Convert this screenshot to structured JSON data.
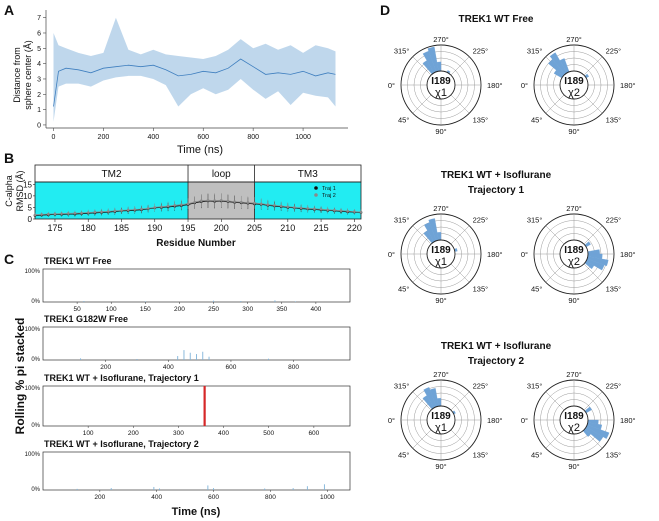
{
  "chart_data": [
    {
      "panel": "A",
      "type": "area",
      "xlabel": "Time (ns)",
      "ylabel_line1": "Distance from",
      "ylabel_line2": "sphere center (Å)",
      "xlim": [
        -30,
        1180
      ],
      "ylim": [
        -0.2,
        7.5
      ],
      "xticks": [
        0,
        200,
        400,
        600,
        800,
        1000
      ],
      "yticks": [
        0,
        1,
        2,
        3,
        4,
        5,
        6,
        7
      ],
      "x": [
        0,
        20,
        50,
        100,
        150,
        200,
        250,
        300,
        350,
        400,
        450,
        500,
        550,
        600,
        650,
        700,
        750,
        800,
        850,
        900,
        950,
        1000,
        1050,
        1100,
        1130
      ],
      "mean": [
        1.2,
        3.5,
        3.7,
        3.6,
        3.4,
        3.7,
        3.8,
        3.9,
        3.8,
        3.9,
        3.6,
        3.2,
        3.3,
        3.5,
        3.4,
        3.7,
        4.3,
        3.8,
        3.3,
        3.4,
        3.3,
        3.5,
        3.2,
        3.4,
        3.3
      ],
      "low": [
        0.2,
        2.5,
        2.7,
        2.7,
        2.5,
        2.9,
        3.1,
        3.2,
        3.2,
        3.0,
        2.6,
        1.2,
        2.0,
        2.4,
        2.0,
        2.3,
        3.0,
        2.3,
        1.7,
        2.2,
        1.3,
        2.1,
        1.9,
        1.8,
        1.2
      ],
      "high": [
        6.0,
        5.2,
        5.0,
        4.7,
        4.5,
        4.7,
        7.0,
        4.9,
        4.6,
        4.9,
        4.6,
        4.5,
        4.4,
        4.3,
        4.5,
        4.9,
        5.6,
        5.0,
        5.3,
        4.9,
        5.2,
        4.7,
        5.2,
        5.0,
        4.8
      ]
    },
    {
      "panel": "B",
      "type": "line",
      "xlabel": "Residue Number",
      "ylabel_line1": "C-alpha",
      "ylabel_line2": "RMSD (Å)",
      "xlim": [
        172,
        221
      ],
      "ylim": [
        0,
        16
      ],
      "xticks": [
        175,
        180,
        185,
        190,
        195,
        200,
        205,
        210,
        215,
        220
      ],
      "yticks": [
        0,
        5,
        10,
        15
      ],
      "regions": [
        {
          "label": "TM2",
          "from": 172,
          "to": 195,
          "color": "#22ecf2"
        },
        {
          "label": "loop",
          "from": 195,
          "to": 205,
          "color": "#bfbfbf"
        },
        {
          "label": "TM3",
          "from": 205,
          "to": 221,
          "color": "#22ecf2"
        }
      ],
      "series": [
        {
          "name": "Traj 1",
          "color": "#111111",
          "x": [
            172,
            173,
            174,
            175,
            176,
            177,
            178,
            179,
            180,
            181,
            182,
            183,
            184,
            185,
            186,
            187,
            188,
            189,
            190,
            191,
            192,
            193,
            194,
            195,
            196,
            197,
            198,
            199,
            200,
            201,
            202,
            203,
            204,
            205,
            206,
            207,
            208,
            209,
            210,
            211,
            212,
            213,
            214,
            215,
            216,
            217,
            218,
            219,
            220,
            221
          ],
          "y": [
            1.5,
            1.7,
            1.8,
            2.0,
            2.0,
            2.1,
            2.1,
            2.3,
            2.5,
            2.6,
            2.8,
            3.0,
            3.2,
            3.5,
            3.6,
            3.8,
            4.0,
            4.4,
            4.8,
            5.0,
            5.2,
            5.5,
            5.8,
            6.2,
            7.0,
            7.5,
            7.8,
            7.6,
            7.8,
            7.5,
            7.2,
            7.0,
            6.8,
            6.5,
            6.3,
            5.9,
            5.6,
            5.3,
            5.0,
            4.8,
            4.5,
            4.3,
            4.1,
            3.9,
            3.7,
            3.5,
            3.3,
            3.1,
            3.0,
            2.8
          ],
          "err": [
            0.8,
            0.8,
            0.9,
            0.9,
            0.9,
            1.0,
            1.0,
            1.0,
            1.1,
            1.1,
            1.2,
            1.2,
            1.3,
            1.3,
            1.4,
            1.4,
            1.5,
            1.5,
            1.6,
            1.7,
            1.8,
            1.9,
            2.0,
            2.2,
            2.5,
            2.8,
            3.0,
            3.0,
            3.0,
            2.9,
            2.8,
            2.6,
            2.5,
            2.4,
            2.2,
            2.0,
            1.9,
            1.8,
            1.7,
            1.6,
            1.5,
            1.4,
            1.3,
            1.3,
            1.2,
            1.2,
            1.1,
            1.1,
            1.0,
            1.0
          ]
        },
        {
          "name": "Traj 2",
          "color": "#8a8a8a",
          "x": [
            172,
            173,
            174,
            175,
            176,
            177,
            178,
            179,
            180,
            181,
            182,
            183,
            184,
            185,
            186,
            187,
            188,
            189,
            190,
            191,
            192,
            193,
            194,
            195,
            196,
            197,
            198,
            199,
            200,
            201,
            202,
            203,
            204,
            205,
            206,
            207,
            208,
            209,
            210,
            211,
            212,
            213,
            214,
            215,
            216,
            217,
            218,
            219,
            220,
            221
          ],
          "y": [
            1.8,
            2.0,
            2.1,
            2.2,
            2.3,
            2.4,
            2.5,
            2.6,
            2.8,
            3.0,
            3.1,
            3.3,
            3.5,
            3.7,
            3.9,
            4.1,
            4.3,
            4.6,
            5.0,
            5.3,
            5.6,
            5.9,
            6.2,
            6.6,
            7.3,
            7.9,
            8.1,
            8.0,
            8.1,
            7.8,
            7.5,
            7.3,
            7.1,
            6.9,
            6.6,
            6.2,
            5.9,
            5.6,
            5.3,
            5.0,
            4.8,
            4.6,
            4.4,
            4.2,
            4.0,
            3.8,
            3.6,
            3.4,
            3.2,
            3.0
          ],
          "err": [
            0.9,
            0.9,
            1.0,
            1.0,
            1.0,
            1.1,
            1.1,
            1.1,
            1.2,
            1.2,
            1.3,
            1.3,
            1.4,
            1.4,
            1.5,
            1.5,
            1.6,
            1.6,
            1.7,
            1.8,
            1.9,
            2.0,
            2.1,
            2.3,
            2.6,
            2.9,
            3.1,
            3.1,
            3.1,
            3.0,
            2.9,
            2.7,
            2.6,
            2.5,
            2.3,
            2.1,
            2.0,
            1.9,
            1.8,
            1.7,
            1.6,
            1.5,
            1.4,
            1.4,
            1.3,
            1.3,
            1.2,
            1.2,
            1.1,
            1.1
          ]
        }
      ]
    },
    {
      "panel": "C",
      "type": "bar",
      "ylabel": "Rolling % pi stacked",
      "xlabel": "Time (ns)",
      "subplots": [
        {
          "title": "TREK1 WT Free",
          "xlim": [
            0,
            450
          ],
          "xticks": [
            50,
            100,
            150,
            200,
            250,
            300,
            350,
            400
          ],
          "yticks": [
            "0%",
            "100%"
          ],
          "color": "#7fb3d9",
          "bars": [
            {
              "x": 60,
              "v": 0.03
            },
            {
              "x": 150,
              "v": 0.02
            },
            {
              "x": 250,
              "v": 0.04
            },
            {
              "x": 290,
              "v": 0.03
            },
            {
              "x": 340,
              "v": 0.05
            },
            {
              "x": 370,
              "v": 0.02
            }
          ]
        },
        {
          "title": "TREK1 G182W Free",
          "xlim": [
            0,
            980
          ],
          "xticks": [
            200,
            400,
            600,
            800
          ],
          "yticks": [
            "0%",
            "100%"
          ],
          "color": "#7fb3d9",
          "bars": [
            {
              "x": 120,
              "v": 0.05
            },
            {
              "x": 300,
              "v": 0.03
            },
            {
              "x": 430,
              "v": 0.12
            },
            {
              "x": 450,
              "v": 0.3
            },
            {
              "x": 470,
              "v": 0.22
            },
            {
              "x": 490,
              "v": 0.18
            },
            {
              "x": 510,
              "v": 0.25
            },
            {
              "x": 530,
              "v": 0.1
            },
            {
              "x": 720,
              "v": 0.04
            }
          ]
        },
        {
          "title": "TREK1 WT + Isoflurane, Trajectory 1",
          "xlim": [
            0,
            680
          ],
          "xticks": [
            100,
            200,
            300,
            400,
            500,
            600
          ],
          "yticks": [
            "0%",
            "100%"
          ],
          "color": "#d62728",
          "bars": [
            {
              "x": 358,
              "v": 1.0
            }
          ]
        },
        {
          "title": "TREK1 WT + Isoflurane, Trajectory 2",
          "xlim": [
            0,
            1080
          ],
          "xticks": [
            200,
            400,
            600,
            800,
            1000
          ],
          "yticks": [
            "0%",
            "100%"
          ],
          "color": "#7fb3d9",
          "bars": [
            {
              "x": 120,
              "v": 0.03
            },
            {
              "x": 240,
              "v": 0.05
            },
            {
              "x": 390,
              "v": 0.08
            },
            {
              "x": 410,
              "v": 0.04
            },
            {
              "x": 580,
              "v": 0.12
            },
            {
              "x": 600,
              "v": 0.05
            },
            {
              "x": 780,
              "v": 0.04
            },
            {
              "x": 880,
              "v": 0.05
            },
            {
              "x": 930,
              "v": 0.1
            },
            {
              "x": 990,
              "v": 0.15
            }
          ]
        }
      ]
    },
    {
      "panel": "D",
      "type": "polar_histogram",
      "angle_labels": [
        "270°",
        "225°",
        "180°",
        "135°",
        "90°",
        "45°",
        "0°",
        "315°"
      ],
      "residue": "I189",
      "color": "#6fa3d6",
      "groups": [
        {
          "title_line1": "TREK1 WT Free",
          "title_line2": "",
          "chi1": {
            "label": "χ1",
            "bins": [
              {
                "deg": 285,
                "r": 0.95
              },
              {
                "deg": 295,
                "r": 0.85
              },
              {
                "deg": 305,
                "r": 0.55
              },
              {
                "deg": 275,
                "r": 0.35
              },
              {
                "deg": 240,
                "r": 0.08
              }
            ]
          },
          "chi2": {
            "label": "χ2",
            "bins": [
              {
                "deg": 295,
                "r": 0.55
              },
              {
                "deg": 305,
                "r": 0.9
              },
              {
                "deg": 315,
                "r": 0.75
              },
              {
                "deg": 325,
                "r": 0.35
              },
              {
                "deg": 215,
                "r": 0.12
              }
            ]
          }
        },
        {
          "title_line1": "TREK1 WT + Isoflurane",
          "title_line2": "Trajectory 1",
          "chi1": {
            "label": "χ1",
            "bins": [
              {
                "deg": 285,
                "r": 0.85
              },
              {
                "deg": 295,
                "r": 0.75
              },
              {
                "deg": 305,
                "r": 0.5
              },
              {
                "deg": 275,
                "r": 0.3
              },
              {
                "deg": 195,
                "r": 0.1
              }
            ]
          },
          "chi2": {
            "label": "χ2",
            "bins": [
              {
                "deg": 175,
                "r": 0.55
              },
              {
                "deg": 165,
                "r": 0.8
              },
              {
                "deg": 155,
                "r": 0.7
              },
              {
                "deg": 185,
                "r": 0.45
              },
              {
                "deg": 215,
                "r": 0.2
              },
              {
                "deg": 145,
                "r": 0.35
              }
            ]
          }
        },
        {
          "title_line1": "TREK1 WT + Isoflurane",
          "title_line2": "Trajectory 2",
          "chi1": {
            "label": "χ1",
            "bins": [
              {
                "deg": 285,
                "r": 0.7
              },
              {
                "deg": 295,
                "r": 0.8
              },
              {
                "deg": 305,
                "r": 0.55
              },
              {
                "deg": 275,
                "r": 0.3
              },
              {
                "deg": 210,
                "r": 0.08
              }
            ]
          },
          "chi2": {
            "label": "χ2",
            "bins": [
              {
                "deg": 165,
                "r": 0.55
              },
              {
                "deg": 155,
                "r": 0.9
              },
              {
                "deg": 145,
                "r": 0.75
              },
              {
                "deg": 175,
                "r": 0.4
              },
              {
                "deg": 215,
                "r": 0.25
              },
              {
                "deg": 135,
                "r": 0.3
              }
            ]
          }
        }
      ]
    }
  ],
  "panel_letters": {
    "a": "A",
    "b": "B",
    "c": "C",
    "d": "D"
  }
}
